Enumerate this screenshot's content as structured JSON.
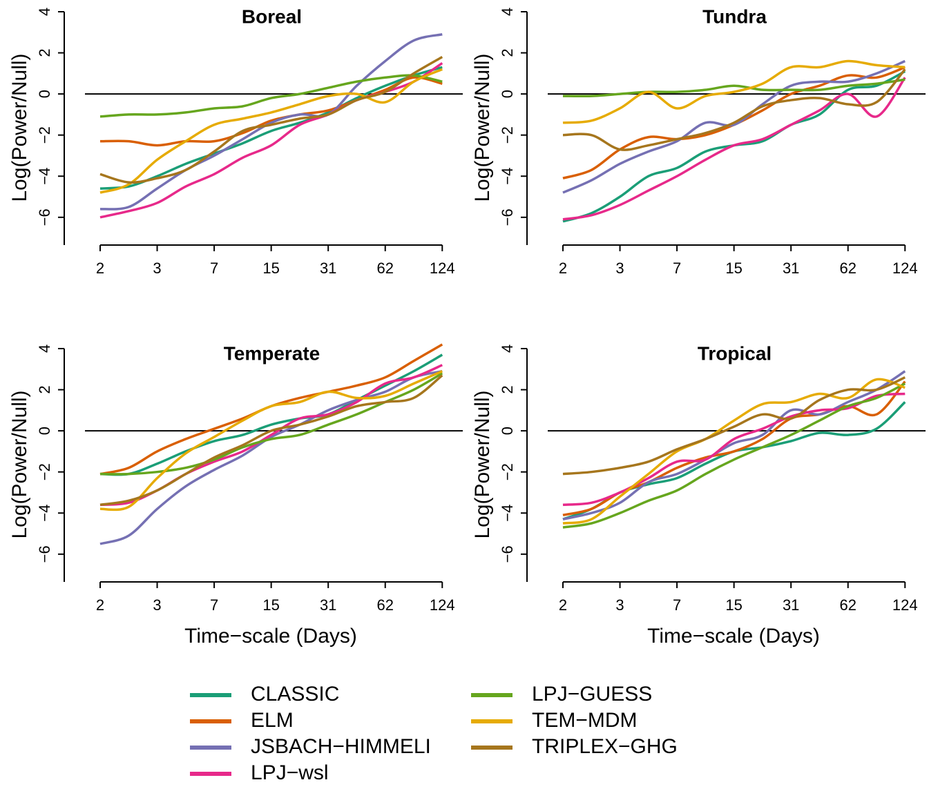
{
  "chart_data": [
    {
      "type": "line",
      "title": "Boreal",
      "ylabel": "Log(Power/Null)",
      "x": [
        1,
        1.5,
        2,
        2.5,
        3,
        3.5,
        4,
        4.5,
        5,
        5.5,
        6,
        6.5,
        7
      ],
      "xlim": [
        0.37,
        7.36
      ],
      "ylim": [
        -7.35,
        4
      ],
      "hline": 0,
      "xticks": [
        {
          "value": 1,
          "label": "2"
        },
        {
          "value": 2,
          "label": "3"
        },
        {
          "value": 3,
          "label": "7"
        },
        {
          "value": 4,
          "label": "15"
        },
        {
          "value": 5,
          "label": "31"
        },
        {
          "value": 6,
          "label": "62"
        },
        {
          "value": 7,
          "label": "124"
        }
      ],
      "yticks": [
        {
          "value": -6,
          "label": "−6"
        },
        {
          "value": -4,
          "label": "−4"
        },
        {
          "value": -2,
          "label": "−2"
        },
        0,
        2,
        4
      ],
      "series": [
        {
          "name": "CLASSIC",
          "color": "#1b9e77",
          "values": [
            -4.6,
            -4.5,
            -4.0,
            -3.4,
            -2.9,
            -2.4,
            -1.8,
            -1.4,
            -0.9,
            -0.2,
            0.4,
            0.9,
            1.3
          ]
        },
        {
          "name": "ELM",
          "color": "#d95f02",
          "values": [
            -2.3,
            -2.3,
            -2.5,
            -2.3,
            -2.3,
            -1.9,
            -1.3,
            -1.0,
            -0.8,
            -0.3,
            0.2,
            0.8,
            0.5
          ]
        },
        {
          "name": "JSBACH−HIMMELI",
          "color": "#7570b3",
          "values": [
            -5.6,
            -5.5,
            -4.6,
            -3.7,
            -3.0,
            -2.2,
            -1.4,
            -1.0,
            -1.0,
            0.4,
            1.6,
            2.6,
            2.9
          ]
        },
        {
          "name": "LPJ−wsl",
          "color": "#e7298a",
          "values": [
            -6.0,
            -5.7,
            -5.3,
            -4.5,
            -3.9,
            -3.1,
            -2.5,
            -1.5,
            -1.0,
            -0.3,
            0.1,
            0.6,
            1.5
          ]
        },
        {
          "name": "LPJ−GUESS",
          "color": "#66a61e",
          "values": [
            -1.1,
            -1.0,
            -1.0,
            -0.9,
            -0.7,
            -0.6,
            -0.2,
            0.0,
            0.3,
            0.6,
            0.8,
            0.9,
            0.6
          ]
        },
        {
          "name": "TEM−MDM",
          "color": "#e6ab02",
          "values": [
            -4.8,
            -4.4,
            -3.2,
            -2.3,
            -1.5,
            -1.2,
            -0.9,
            -0.5,
            -0.1,
            0.0,
            -0.4,
            0.6,
            1.2
          ]
        },
        {
          "name": "TRIPLEX−GHG",
          "color": "#a6761d",
          "values": [
            -3.9,
            -4.3,
            -4.1,
            -3.7,
            -2.8,
            -1.8,
            -1.5,
            -1.2,
            -1.0,
            -0.3,
            0.1,
            1.0,
            1.8
          ]
        }
      ]
    },
    {
      "type": "line",
      "title": "Tundra",
      "ylabel": "Log(Power/Null)",
      "x": [
        1,
        1.5,
        2,
        2.5,
        3,
        3.5,
        4,
        4.5,
        5,
        5.5,
        6,
        6.5,
        7
      ],
      "xlim": [
        0.37,
        7.36
      ],
      "ylim": [
        -7.35,
        4
      ],
      "hline": 0,
      "xticks": [
        {
          "value": 1,
          "label": "2"
        },
        {
          "value": 2,
          "label": "3"
        },
        {
          "value": 3,
          "label": "7"
        },
        {
          "value": 4,
          "label": "15"
        },
        {
          "value": 5,
          "label": "31"
        },
        {
          "value": 6,
          "label": "62"
        },
        {
          "value": 7,
          "label": "124"
        }
      ],
      "yticks": [
        {
          "value": -6,
          "label": "−6"
        },
        {
          "value": -4,
          "label": "−4"
        },
        {
          "value": -2,
          "label": "−2"
        },
        0,
        2,
        4
      ],
      "series": [
        {
          "name": "CLASSIC",
          "color": "#1b9e77",
          "values": [
            -6.2,
            -5.8,
            -5.0,
            -4.0,
            -3.6,
            -2.8,
            -2.5,
            -2.3,
            -1.5,
            -1.0,
            0.2,
            0.4,
            1.1
          ]
        },
        {
          "name": "ELM",
          "color": "#d95f02",
          "values": [
            -4.1,
            -3.7,
            -2.7,
            -2.1,
            -2.2,
            -2.0,
            -1.5,
            -0.8,
            0.0,
            0.4,
            0.9,
            0.8,
            1.3
          ]
        },
        {
          "name": "JSBACH−HIMMELI",
          "color": "#7570b3",
          "values": [
            -4.8,
            -4.2,
            -3.4,
            -2.8,
            -2.3,
            -1.4,
            -1.5,
            -0.5,
            0.4,
            0.6,
            0.6,
            1.0,
            1.6
          ]
        },
        {
          "name": "LPJ−wsl",
          "color": "#e7298a",
          "values": [
            -6.1,
            -5.9,
            -5.4,
            -4.7,
            -4.0,
            -3.2,
            -2.5,
            -2.2,
            -1.5,
            -0.8,
            0.0,
            -1.1,
            0.8
          ]
        },
        {
          "name": "LPJ−GUESS",
          "color": "#66a61e",
          "values": [
            -0.1,
            -0.1,
            0.0,
            0.1,
            0.1,
            0.2,
            0.4,
            0.2,
            0.2,
            0.2,
            0.4,
            0.5,
            0.7
          ]
        },
        {
          "name": "TEM−MDM",
          "color": "#e6ab02",
          "values": [
            -1.4,
            -1.3,
            -0.7,
            0.1,
            -0.7,
            -0.1,
            0.1,
            0.5,
            1.3,
            1.3,
            1.6,
            1.4,
            1.3
          ]
        },
        {
          "name": "TRIPLEX−GHG",
          "color": "#a6761d",
          "values": [
            -2.0,
            -2.0,
            -2.7,
            -2.5,
            -2.2,
            -1.9,
            -1.4,
            -0.6,
            -0.3,
            -0.2,
            -0.5,
            -0.4,
            1.2
          ]
        }
      ]
    },
    {
      "type": "line",
      "title": "Temperate",
      "ylabel": "Log(Power/Null)",
      "xlabel": "Time−scale (Days)",
      "x": [
        1,
        1.5,
        2,
        2.5,
        3,
        3.5,
        4,
        4.5,
        5,
        5.5,
        6,
        6.5,
        7
      ],
      "xlim": [
        0.37,
        7.36
      ],
      "ylim": [
        -7.35,
        4
      ],
      "hline": 0,
      "xticks": [
        {
          "value": 1,
          "label": "2"
        },
        {
          "value": 2,
          "label": "3"
        },
        {
          "value": 3,
          "label": "7"
        },
        {
          "value": 4,
          "label": "15"
        },
        {
          "value": 5,
          "label": "31"
        },
        {
          "value": 6,
          "label": "62"
        },
        {
          "value": 7,
          "label": "124"
        }
      ],
      "yticks": [
        {
          "value": -6,
          "label": "−6"
        },
        {
          "value": -4,
          "label": "−4"
        },
        {
          "value": -2,
          "label": "−2"
        },
        0,
        2,
        4
      ],
      "series": [
        {
          "name": "CLASSIC",
          "color": "#1b9e77",
          "values": [
            -2.1,
            -2.1,
            -1.6,
            -1.0,
            -0.5,
            -0.2,
            0.3,
            0.6,
            0.8,
            1.5,
            2.2,
            2.9,
            3.7
          ]
        },
        {
          "name": "ELM",
          "color": "#d95f02",
          "values": [
            -2.1,
            -1.8,
            -1.0,
            -0.4,
            0.1,
            0.6,
            1.2,
            1.6,
            1.9,
            2.2,
            2.6,
            3.4,
            4.2
          ]
        },
        {
          "name": "JSBACH−HIMMELI",
          "color": "#7570b3",
          "values": [
            -5.5,
            -5.1,
            -3.8,
            -2.7,
            -1.9,
            -1.2,
            -0.3,
            0.3,
            1.0,
            1.5,
            1.9,
            2.6,
            2.9
          ]
        },
        {
          "name": "LPJ−wsl",
          "color": "#e7298a",
          "values": [
            -3.6,
            -3.5,
            -2.9,
            -2.1,
            -1.5,
            -1.0,
            -0.2,
            0.6,
            0.8,
            1.4,
            2.3,
            2.6,
            3.2
          ]
        },
        {
          "name": "LPJ−GUESS",
          "color": "#66a61e",
          "values": [
            -2.1,
            -2.1,
            -2.0,
            -1.8,
            -1.4,
            -0.8,
            -0.4,
            -0.2,
            0.3,
            0.8,
            1.4,
            2.0,
            2.8
          ]
        },
        {
          "name": "TEM−MDM",
          "color": "#e6ab02",
          "values": [
            -3.8,
            -3.7,
            -2.3,
            -1.1,
            -0.3,
            0.5,
            1.2,
            1.4,
            1.9,
            1.6,
            1.7,
            2.3,
            2.9
          ]
        },
        {
          "name": "TRIPLEX−GHG",
          "color": "#a6761d",
          "values": [
            -3.6,
            -3.4,
            -2.9,
            -2.1,
            -1.3,
            -0.7,
            0.0,
            0.3,
            0.7,
            1.2,
            1.4,
            1.6,
            2.7
          ]
        }
      ]
    },
    {
      "type": "line",
      "title": "Tropical",
      "ylabel": "Log(Power/Null)",
      "xlabel": "Time−scale (Days)",
      "x": [
        1,
        1.5,
        2,
        2.5,
        3,
        3.5,
        4,
        4.5,
        5,
        5.5,
        6,
        6.5,
        7
      ],
      "xlim": [
        0.37,
        7.36
      ],
      "ylim": [
        -7.35,
        4
      ],
      "hline": 0,
      "xticks": [
        {
          "value": 1,
          "label": "2"
        },
        {
          "value": 2,
          "label": "3"
        },
        {
          "value": 3,
          "label": "7"
        },
        {
          "value": 4,
          "label": "15"
        },
        {
          "value": 5,
          "label": "31"
        },
        {
          "value": 6,
          "label": "62"
        },
        {
          "value": 7,
          "label": "124"
        }
      ],
      "yticks": [
        {
          "value": -6,
          "label": "−6"
        },
        {
          "value": -4,
          "label": "−4"
        },
        {
          "value": -2,
          "label": "−2"
        },
        0,
        2,
        4
      ],
      "series": [
        {
          "name": "CLASSIC",
          "color": "#1b9e77",
          "values": [
            -4.3,
            -3.8,
            -3.0,
            -2.6,
            -2.3,
            -1.6,
            -1.0,
            -0.8,
            -0.5,
            -0.1,
            -0.2,
            0.1,
            1.4
          ]
        },
        {
          "name": "ELM",
          "color": "#d95f02",
          "values": [
            -4.1,
            -3.8,
            -3.0,
            -2.5,
            -1.8,
            -1.3,
            -1.0,
            -0.4,
            0.6,
            0.8,
            1.2,
            0.8,
            2.4
          ]
        },
        {
          "name": "JSBACH−HIMMELI",
          "color": "#7570b3",
          "values": [
            -4.3,
            -4.0,
            -3.5,
            -2.5,
            -2.1,
            -1.4,
            -0.6,
            -0.2,
            1.0,
            0.8,
            1.4,
            2.0,
            2.9
          ]
        },
        {
          "name": "LPJ−wsl",
          "color": "#e7298a",
          "values": [
            -3.6,
            -3.5,
            -3.0,
            -2.3,
            -1.5,
            -1.4,
            -0.4,
            0.1,
            0.7,
            1.0,
            1.1,
            1.7,
            1.8
          ]
        },
        {
          "name": "LPJ−GUESS",
          "color": "#66a61e",
          "values": [
            -4.7,
            -4.5,
            -4.0,
            -3.4,
            -2.9,
            -2.1,
            -1.4,
            -0.8,
            -0.2,
            0.5,
            1.2,
            1.6,
            2.3
          ]
        },
        {
          "name": "TEM−MDM",
          "color": "#e6ab02",
          "values": [
            -4.5,
            -4.3,
            -3.2,
            -2.1,
            -1.0,
            -0.4,
            0.5,
            1.3,
            1.4,
            1.8,
            1.6,
            2.5,
            2.1
          ]
        },
        {
          "name": "TRIPLEX−GHG",
          "color": "#a6761d",
          "values": [
            -2.1,
            -2.0,
            -1.8,
            -1.5,
            -0.9,
            -0.4,
            0.2,
            0.8,
            0.6,
            1.5,
            2.0,
            2.0,
            2.6
          ]
        }
      ]
    }
  ]
}
